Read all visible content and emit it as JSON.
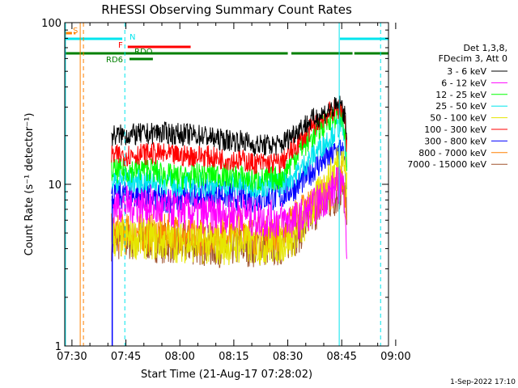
{
  "chart_data": {
    "type": "line",
    "title": "RHESSI Observing Summary Count Rates",
    "xlabel": "Start Time (21-Aug-17 07:28:02)",
    "ylabel": "Count Rate (s⁻¹ detector⁻¹)",
    "ylim": [
      1,
      100
    ],
    "yscale": "log",
    "xlim_minutes": [
      28,
      118
    ],
    "x_ticks": [
      "07:30",
      "07:45",
      "08:00",
      "08:15",
      "08:30",
      "08:45",
      "09:00"
    ],
    "x_tick_minutes": [
      30,
      45,
      60,
      75,
      90,
      105,
      120
    ],
    "y_ticks": [
      "1",
      "10",
      "100"
    ],
    "y_tick_values": [
      1,
      10,
      100
    ],
    "legend_header": [
      "Det 1,3,8,",
      "FDecim 3, Att 0"
    ],
    "footer_date": "1-Sep-2022 17:10",
    "flags": [
      {
        "label": "S",
        "color": "#ff8000",
        "segments": [
          [
            28,
            30
          ],
          [
            30.5,
            31
          ]
        ]
      },
      {
        "label": "N",
        "color": "#00e5ee",
        "segments": [
          [
            28,
            44
          ],
          [
            104.5,
            118
          ]
        ]
      },
      {
        "label": "F",
        "color": "#ff0000",
        "segments": [
          [
            45.5,
            63
          ]
        ]
      },
      {
        "label": "RDO",
        "color": "#008000",
        "segments": [
          [
            28,
            90
          ],
          [
            91,
            108
          ],
          [
            108.5,
            118
          ]
        ]
      },
      {
        "label": "RD6",
        "color": "#008000",
        "segments": [
          [
            46,
            52.5
          ]
        ]
      }
    ],
    "vlines": [
      {
        "x": 28.2,
        "color": "#00e5ee",
        "style": "solid"
      },
      {
        "x": 32.3,
        "color": "#ff8000",
        "style": "solid"
      },
      {
        "x": 33.2,
        "color": "#ff8000",
        "style": "dashed"
      },
      {
        "x": 44.7,
        "color": "#00e5ee",
        "style": "dashed"
      },
      {
        "x": 104.3,
        "color": "#00e5ee",
        "style": "solid"
      },
      {
        "x": 115.8,
        "color": "#00e5ee",
        "style": "dashed"
      }
    ],
    "time_knots": [
      41,
      52,
      53,
      59,
      67,
      70,
      78,
      80,
      88,
      93,
      98,
      102,
      105,
      106,
      106.5
    ],
    "series": [
      {
        "name": "3 - 6 keV",
        "color": "#000000",
        "values": [
          20,
          20.5,
          21,
          20.5,
          20,
          19,
          18.5,
          17.5,
          17.5,
          22,
          26,
          29,
          31,
          25,
          18
        ]
      },
      {
        "name": "6 - 12 keV",
        "color": "#ff00ff",
        "values": [
          7.5,
          7.5,
          7,
          7,
          6.5,
          6.5,
          6.8,
          6.2,
          6,
          6,
          7.5,
          9,
          10.5,
          8,
          3
        ]
      },
      {
        "name": "12 - 25 keV",
        "color": "#00ff00",
        "values": [
          12,
          12.5,
          12,
          11,
          11.5,
          11.5,
          11,
          10.5,
          11,
          16,
          21,
          26,
          27,
          20,
          12
        ]
      },
      {
        "name": "25 - 50 keV",
        "color": "#00e5ee",
        "values": [
          10.5,
          10.5,
          10.5,
          10,
          10,
          10,
          10,
          9.8,
          10,
          12,
          16,
          20,
          24,
          18,
          11
        ]
      },
      {
        "name": "50 - 100 keV",
        "color": "#e6e600",
        "values": [
          4.6,
          4.6,
          4.5,
          4.4,
          4.3,
          4.2,
          4.3,
          4.2,
          4.3,
          5,
          8,
          11,
          16,
          12,
          9
        ]
      },
      {
        "name": "100 - 300 keV",
        "color": "#ff0000",
        "values": [
          15,
          15.5,
          15.5,
          15,
          15,
          14.5,
          14,
          13.5,
          13.5,
          18,
          24,
          28,
          30,
          24,
          15
        ]
      },
      {
        "name": "300 - 800 keV",
        "color": "#0000ff",
        "values": [
          8.5,
          8.5,
          8.2,
          8,
          8.8,
          8.8,
          8.2,
          8.1,
          8.4,
          10,
          13,
          15,
          17,
          12,
          8
        ]
      },
      {
        "name": "800 - 7000 keV",
        "color": "#ff8000",
        "values": [
          5,
          5,
          5,
          5,
          4.7,
          5,
          5.6,
          4.8,
          5,
          6.5,
          8,
          9,
          11,
          9,
          7
        ]
      },
      {
        "name": "7000 - 15000 keV",
        "color": "#a0522d",
        "values": [
          4.5,
          4.5,
          4.4,
          4.3,
          4.2,
          4.1,
          4.2,
          4.1,
          4.2,
          5,
          7,
          8,
          9,
          8,
          6
        ]
      }
    ]
  }
}
